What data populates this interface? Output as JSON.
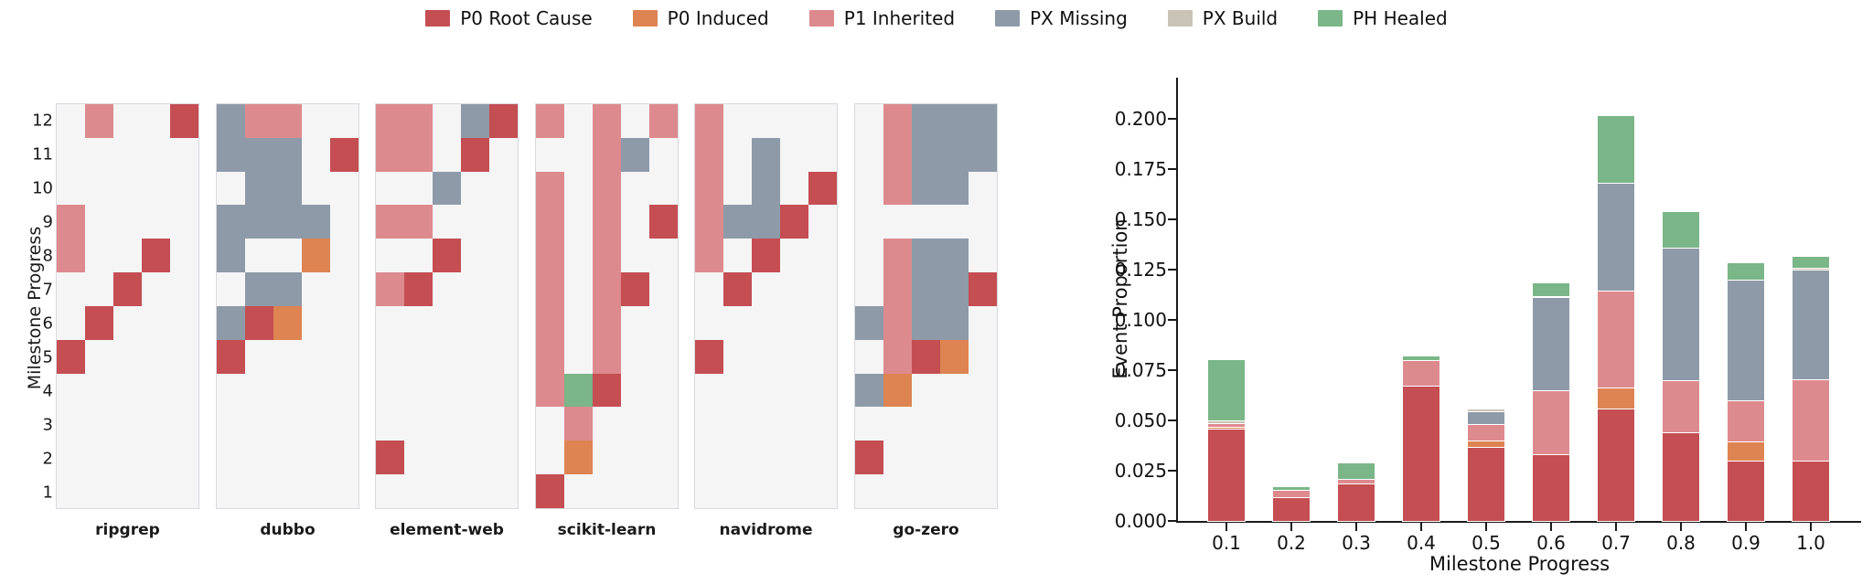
{
  "legend": {
    "items": [
      {
        "label": "P0 Root Cause",
        "color": "#c44e52"
      },
      {
        "label": "P0 Induced",
        "color": "#dd8452"
      },
      {
        "label": "P1 Inherited",
        "color": "#dd8a8e"
      },
      {
        "label": "PX Missing",
        "color": "#8e9aa8"
      },
      {
        "label": "PX Build",
        "color": "#c9c3b5"
      },
      {
        "label": "PH Healed",
        "color": "#7ab687"
      }
    ]
  },
  "chart_data": [
    {
      "type": "heatmap",
      "ylabel": "Milestone Progress",
      "y_ticks": [
        "12",
        "11",
        "10",
        "9",
        "8",
        "7",
        "6",
        "5",
        "4",
        "3",
        "2",
        "1"
      ],
      "legend_note": "cell codes: R=P0 Root Cause, O=P0 Induced, P=P1 Inherited, X=PX Missing, B=PX Build, G=PH Healed, .=empty",
      "colors": {
        "R": "#c44e52",
        "O": "#dd8452",
        "P": "#dd8a8e",
        "X": "#8e9aa8",
        "B": "#c9c3b5",
        "G": "#7ab687"
      },
      "panels": [
        {
          "title": "ripgrep",
          "grid": [
            ".P..R",
            ".....",
            ".....",
            "P....",
            "P..R.",
            "..R..",
            ".R...",
            "R....",
            ".....",
            ".....",
            ".....",
            "....."
          ]
        },
        {
          "title": "dubbo",
          "grid": [
            "XPP..",
            "XXX.R",
            ".XX..",
            "XXXX.",
            "X..O.",
            ".XX..",
            "XRO..",
            "R....",
            ".....",
            ".....",
            ".....",
            "....."
          ]
        },
        {
          "title": "element-web",
          "grid": [
            "PP.XR",
            "PP.R.",
            "..X..",
            "PP...",
            "..R..",
            "PR...",
            ".....",
            ".....",
            ".....",
            ".....",
            "R....",
            "....."
          ]
        },
        {
          "title": "scikit-learn",
          "grid": [
            "P.P.P",
            "..PX.",
            "P.P..",
            "P.P.R",
            "P.P..",
            "P.PR.",
            "P.P..",
            "P.P..",
            "PGR..",
            ".P...",
            ".O...",
            "R...."
          ]
        },
        {
          "title": "navidrome",
          "grid": [
            "P....",
            "P.X..",
            "P.X.R",
            "PXXR.",
            "P.R..",
            ".R...",
            ".....",
            "R....",
            ".....",
            ".....",
            ".....",
            "....."
          ]
        },
        {
          "title": "go-zero",
          "grid": [
            ".PXXX",
            ".PXXX",
            ".PXX.",
            ".....",
            ".PXX.",
            ".PXXR",
            "XPXX.",
            ".PRO.",
            "XO...",
            ".....",
            "R....",
            "....."
          ]
        }
      ]
    },
    {
      "type": "bar",
      "stacked": true,
      "xlabel": "Milestone Progress",
      "ylabel": "Event Proportion",
      "categories": [
        "0.1",
        "0.2",
        "0.3",
        "0.4",
        "0.5",
        "0.6",
        "0.7",
        "0.8",
        "0.9",
        "1.0"
      ],
      "y_ticks": [
        "0.000",
        "0.025",
        "0.050",
        "0.075",
        "0.100",
        "0.125",
        "0.150",
        "0.175",
        "0.200"
      ],
      "ylim": [
        0,
        0.2205
      ],
      "legend_position": "top-center",
      "series": [
        {
          "name": "P0 Root Cause",
          "color": "#c44e52",
          "values": [
            0.046,
            0.012,
            0.0185,
            0.0675,
            0.037,
            0.033,
            0.056,
            0.044,
            0.03,
            0.03
          ]
        },
        {
          "name": "P0 Induced",
          "color": "#dd8452",
          "values": [
            0.001,
            0,
            0,
            0,
            0.003,
            0,
            0.0105,
            0,
            0.0095,
            0
          ]
        },
        {
          "name": "P1 Inherited",
          "color": "#dd8a8e",
          "values": [
            0.0015,
            0.0035,
            0.0025,
            0.0125,
            0.008,
            0.032,
            0.048,
            0.026,
            0.0205,
            0.0405
          ]
        },
        {
          "name": "PX Missing",
          "color": "#8e9aa8",
          "values": [
            0,
            0,
            0,
            0,
            0.0065,
            0.0465,
            0.0535,
            0.066,
            0.06,
            0.0545
          ]
        },
        {
          "name": "PX Build",
          "color": "#c9c3b5",
          "values": [
            0.0015,
            0,
            0,
            0,
            0.001,
            0.0005,
            0,
            0,
            0,
            0.001
          ]
        },
        {
          "name": "PH Healed",
          "color": "#7ab687",
          "values": [
            0.03,
            0.0015,
            0.0075,
            0.002,
            0,
            0.006,
            0.0335,
            0.0175,
            0.008,
            0.0055
          ]
        }
      ]
    }
  ]
}
